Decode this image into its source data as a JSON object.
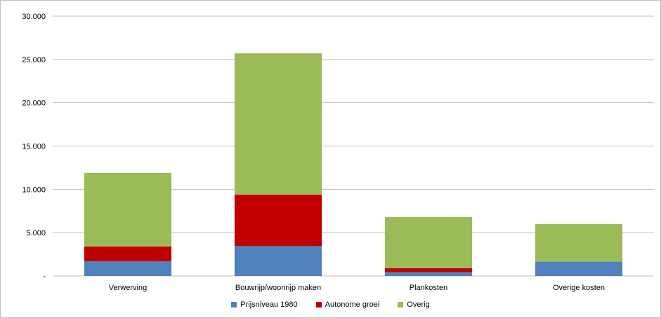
{
  "chart_data": {
    "type": "bar",
    "stacked": true,
    "categories": [
      "Verwerving",
      "Bouwrijp/woonrijp maken",
      "Plankosten",
      "Overige kosten"
    ],
    "series": [
      {
        "name": "Prijsniveau 1980",
        "color": "#4f81bd",
        "values": [
          1700,
          3450,
          450,
          1650
        ]
      },
      {
        "name": "Autonome groei",
        "color": "#c00000",
        "values": [
          1700,
          5950,
          450,
          0
        ]
      },
      {
        "name": "Overig",
        "color": "#9bbb59",
        "values": [
          8500,
          16300,
          5900,
          4350
        ]
      }
    ],
    "ylim": [
      0,
      30000
    ],
    "yticks": [
      {
        "value": 0,
        "label": "-"
      },
      {
        "value": 5000,
        "label": "5.000"
      },
      {
        "value": 10000,
        "label": "10.000"
      },
      {
        "value": 15000,
        "label": "15.000"
      },
      {
        "value": 20000,
        "label": "20.000"
      },
      {
        "value": 25000,
        "label": "25.000"
      },
      {
        "value": 30000,
        "label": "30.000"
      }
    ],
    "grid": true,
    "legend_position": "bottom",
    "title": "",
    "xlabel": "",
    "ylabel": ""
  }
}
